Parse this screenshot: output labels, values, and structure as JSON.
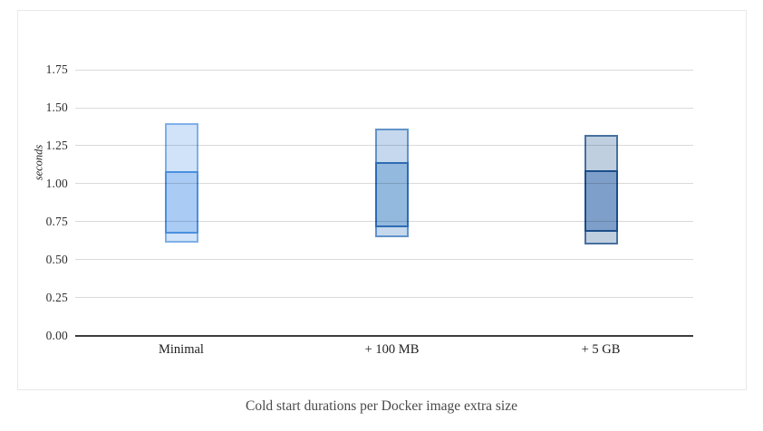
{
  "chart_data": {
    "type": "range-bar",
    "title": "Cold start durations per Docker image extra size",
    "ylabel": "seconds",
    "xlabel": "",
    "ylim": [
      0,
      1.75
    ],
    "ytick_labels": [
      "1.75",
      "1.50",
      "1.25",
      "1.00",
      "0.75",
      "0.50",
      "0.25",
      "0.00"
    ],
    "grid": "horizontal",
    "legend": "none",
    "categories": [
      "Minimal",
      "+ 100 MB",
      "+ 5 GB"
    ],
    "series": [
      {
        "category": "Minimal",
        "min": 0.61,
        "band_low": 0.67,
        "band_high": 1.08,
        "max": 1.4,
        "colors": {
          "outer_fill": "#d0e3f9",
          "outer_stroke": "#7fb0e6",
          "inner_fill": "#a9cbf4",
          "inner_stroke": "#4b90de"
        }
      },
      {
        "category": "+ 100 MB",
        "min": 0.65,
        "band_low": 0.71,
        "band_high": 1.14,
        "max": 1.36,
        "colors": {
          "outer_fill": "#c5d8ed",
          "outer_stroke": "#6293c9",
          "inner_fill": "#93b9de",
          "inner_stroke": "#2d6cb3"
        }
      },
      {
        "category": "+ 5 GB",
        "min": 0.6,
        "band_low": 0.68,
        "band_high": 1.09,
        "max": 1.32,
        "colors": {
          "outer_fill": "#c0cfe0",
          "outer_stroke": "#47709f",
          "inner_fill": "#7e9fc9",
          "inner_stroke": "#1c4e8a"
        }
      }
    ]
  }
}
